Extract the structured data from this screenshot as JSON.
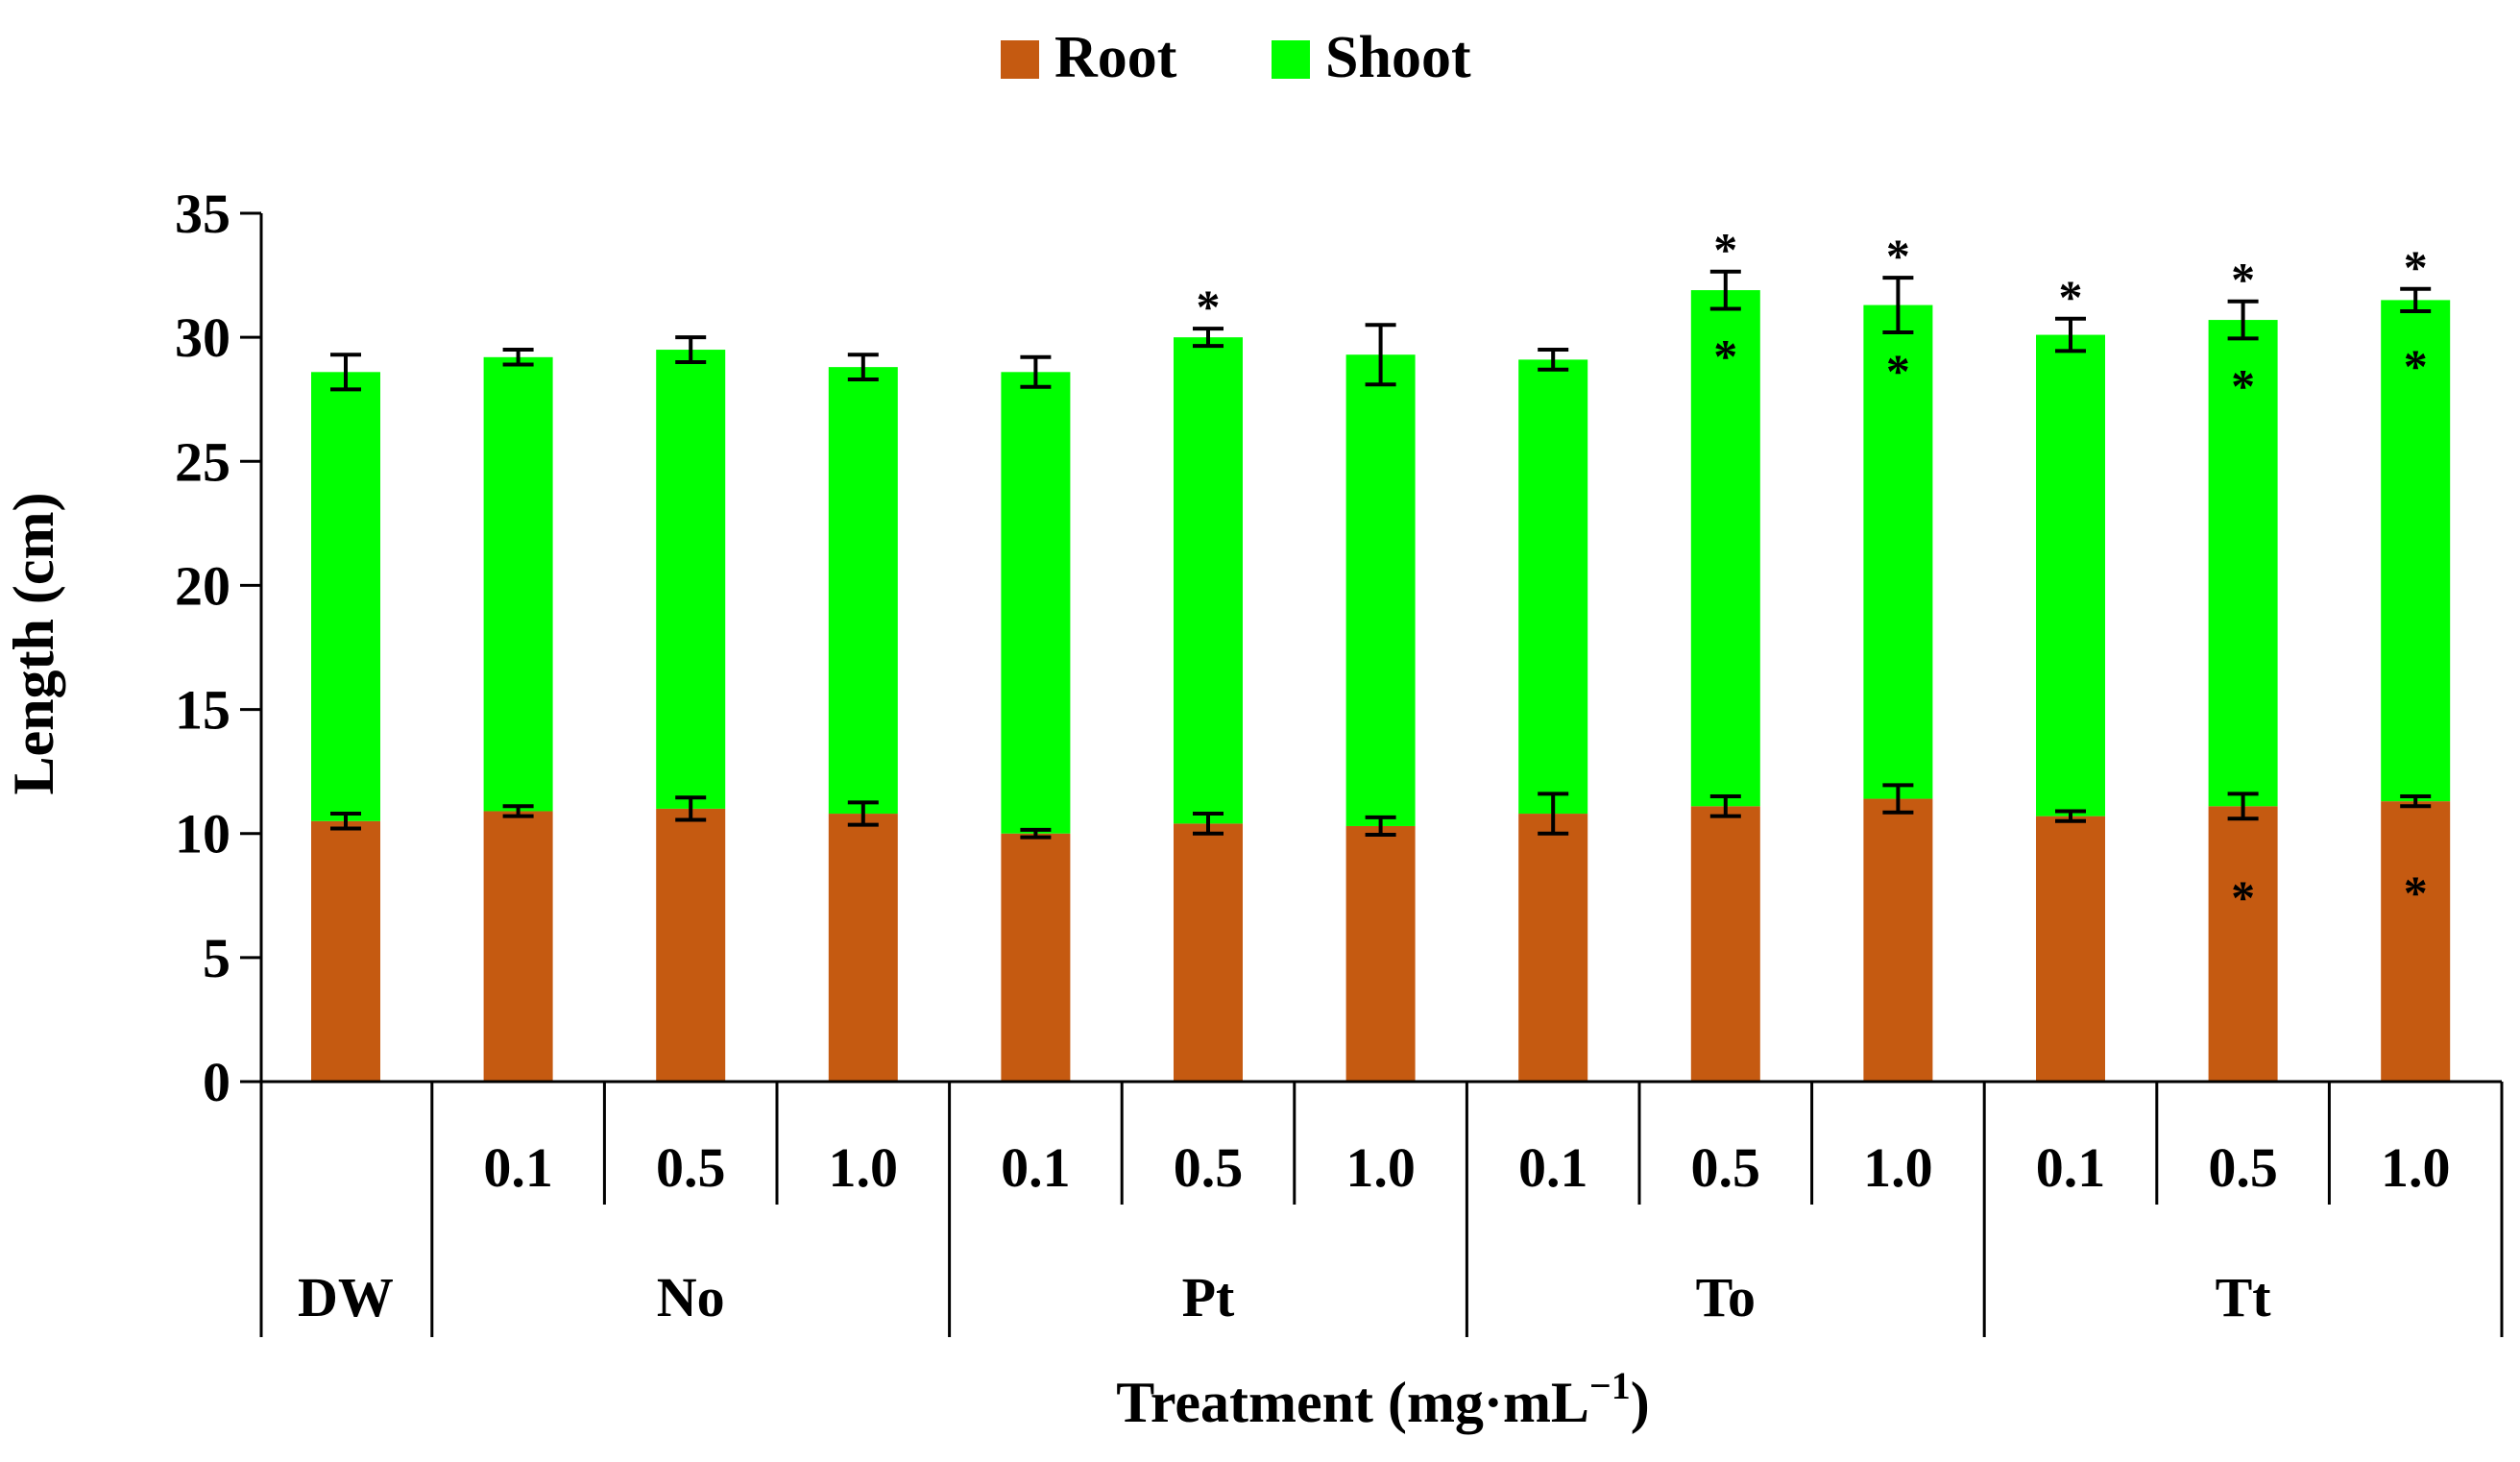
{
  "chart_data": {
    "type": "bar",
    "stacked": true,
    "title": "",
    "xlabel": "Treatment (mg·mL",
    "xlabel_superscript": "−1",
    "xlabel_close": ")",
    "ylabel": "Length (cm)",
    "ylim": [
      0,
      35
    ],
    "yticks": [
      0,
      5,
      10,
      15,
      20,
      25,
      30,
      35
    ],
    "legend_position": "top-center",
    "groups": [
      {
        "label": "DW",
        "concentrations": [
          ""
        ]
      },
      {
        "label": "No",
        "concentrations": [
          "0.1",
          "0.5",
          "1.0"
        ]
      },
      {
        "label": "Pt",
        "concentrations": [
          "0.1",
          "0.5",
          "1.0"
        ]
      },
      {
        "label": "To",
        "concentrations": [
          "0.1",
          "0.5",
          "1.0"
        ]
      },
      {
        "label": "Tt",
        "concentrations": [
          "0.1",
          "0.5",
          "1.0"
        ]
      }
    ],
    "series": [
      {
        "name": "Root",
        "color": "#C55A11",
        "values": [
          10.5,
          10.9,
          11.0,
          10.8,
          10.0,
          10.4,
          10.3,
          10.8,
          11.1,
          11.4,
          10.7,
          11.1,
          11.3
        ],
        "errors": [
          0.3,
          0.2,
          0.45,
          0.45,
          0.15,
          0.4,
          0.35,
          0.8,
          0.4,
          0.55,
          0.2,
          0.5,
          0.2
        ],
        "significant": [
          false,
          false,
          false,
          false,
          false,
          false,
          false,
          false,
          false,
          false,
          false,
          true,
          true
        ]
      },
      {
        "name": "Shoot",
        "color": "#00FF00",
        "values": [
          18.1,
          18.3,
          18.5,
          18.0,
          18.6,
          19.6,
          19.0,
          18.3,
          20.8,
          19.9,
          19.4,
          19.6,
          20.2
        ],
        "errors": [
          0.7,
          0.3,
          0.5,
          0.5,
          0.6,
          0.35,
          1.2,
          0.4,
          0.75,
          1.1,
          0.65,
          0.75,
          0.45
        ],
        "significant": [
          false,
          false,
          false,
          false,
          false,
          false,
          false,
          false,
          true,
          true,
          false,
          true,
          true
        ]
      }
    ],
    "total_significant": [
      false,
      false,
      false,
      false,
      false,
      true,
      false,
      false,
      true,
      true,
      true,
      true,
      true
    ],
    "significance_marker": "*"
  }
}
